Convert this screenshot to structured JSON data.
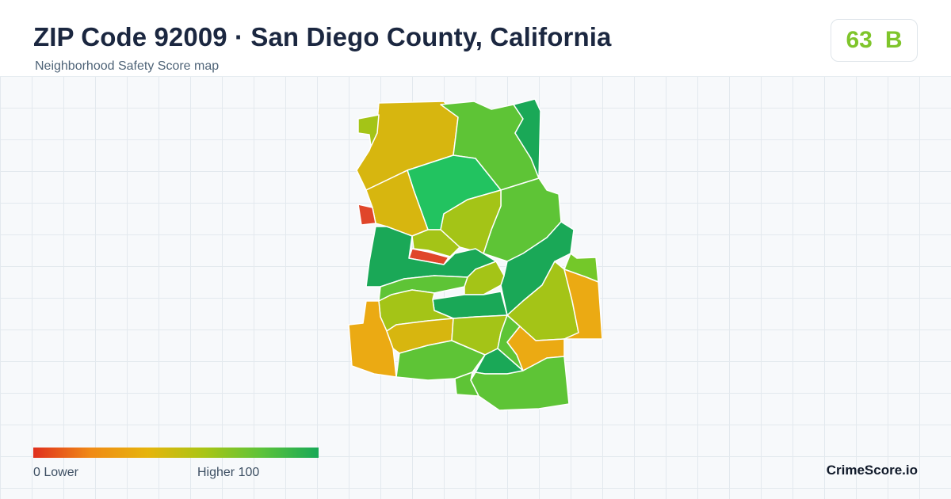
{
  "header": {
    "title": "ZIP Code 92009 · San Diego County, California",
    "subtitle": "Neighborhood Safety Score map"
  },
  "score": {
    "value": "63",
    "grade": "B",
    "color": "#7fc52b"
  },
  "legend": {
    "low_label": "0  Lower",
    "high_label": "Higher  100",
    "gradient_colors": [
      "#e0301e",
      "#f08a16",
      "#e6b40c",
      "#a9c515",
      "#5cc33a",
      "#18a957"
    ]
  },
  "map": {
    "scale_colors": {
      "red": "#e0462a",
      "orange": "#ebaa13",
      "gold": "#d7b60f",
      "olive": "#a4c417",
      "lightgreen": "#74c829",
      "green": "#5ec436",
      "brightgreen": "#3cc64f",
      "emerald": "#22c360",
      "darkgreen": "#1aa857"
    }
  },
  "brand": "CrimeScore.io"
}
